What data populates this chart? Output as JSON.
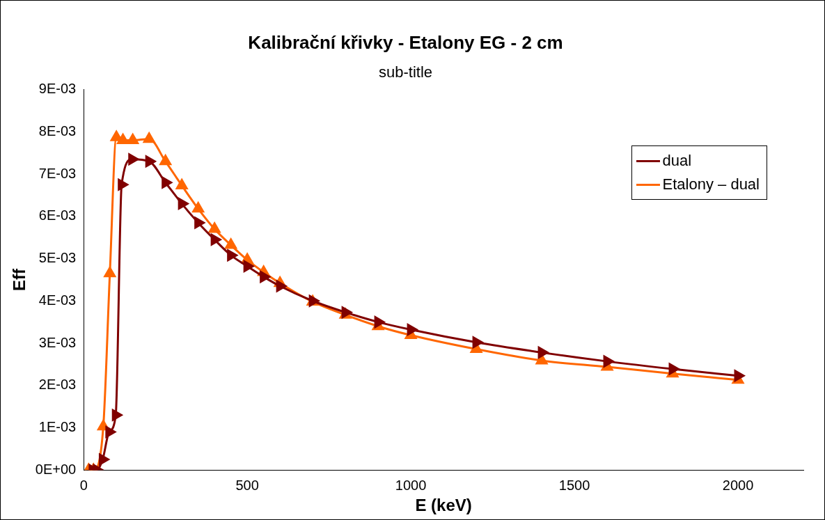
{
  "chart_data": {
    "type": "line",
    "title": "Kalibrační křivky - Etalony EG - 2 cm",
    "subtitle": "sub-title",
    "xlabel": "E (keV)",
    "ylabel": "Eff",
    "xlim": [
      0,
      2200
    ],
    "xticks": [
      0,
      500,
      1000,
      1500,
      2000
    ],
    "ylim": [
      0,
      0.009
    ],
    "yticks": [
      {
        "value": 0,
        "label": "0E+00"
      },
      {
        "value": 0.001,
        "label": "1E-03"
      },
      {
        "value": 0.002,
        "label": "2E-03"
      },
      {
        "value": 0.003,
        "label": "3E-03"
      },
      {
        "value": 0.004,
        "label": "4E-03"
      },
      {
        "value": 0.005,
        "label": "5E-03"
      },
      {
        "value": 0.006,
        "label": "6E-03"
      },
      {
        "value": 0.007,
        "label": "7E-03"
      },
      {
        "value": 0.008,
        "label": "8E-03"
      },
      {
        "value": 0.009,
        "label": "9E-03"
      }
    ],
    "grid": false,
    "legend": "top right",
    "marker": "triangle",
    "line_style": "solid",
    "series": [
      {
        "name": "dual",
        "color": "#800000",
        "x": [
          27,
          40,
          58,
          78,
          98,
          116,
          148,
          200,
          250,
          300,
          350,
          400,
          450,
          500,
          550,
          600,
          700,
          800,
          900,
          1000,
          1200,
          1400,
          1600,
          1800,
          2000
        ],
        "values": [
          0,
          0,
          0.00025,
          0.0009,
          0.0013,
          0.00675,
          0.00735,
          0.0073,
          0.0068,
          0.0063,
          0.00585,
          0.00545,
          0.00508,
          0.00482,
          0.00457,
          0.00435,
          0.004,
          0.00373,
          0.0035,
          0.00332,
          0.00302,
          0.00278,
          0.00257,
          0.00239,
          0.00223
        ]
      },
      {
        "name": "Etalony – dual",
        "color": "#ff6600",
        "x": [
          15,
          30,
          60,
          80,
          100,
          120,
          150,
          200,
          250,
          300,
          350,
          400,
          450,
          500,
          550,
          600,
          700,
          800,
          900,
          1000,
          1200,
          1400,
          1600,
          1800,
          2000
        ],
        "values": [
          0,
          0,
          0.00103,
          0.00465,
          0.00787,
          0.0078,
          0.0078,
          0.00783,
          0.0073,
          0.00673,
          0.00618,
          0.0057,
          0.00532,
          0.00497,
          0.00468,
          0.00442,
          0.00398,
          0.00367,
          0.0034,
          0.00319,
          0.00286,
          0.00259,
          0.00244,
          0.00228,
          0.00213
        ]
      }
    ]
  }
}
